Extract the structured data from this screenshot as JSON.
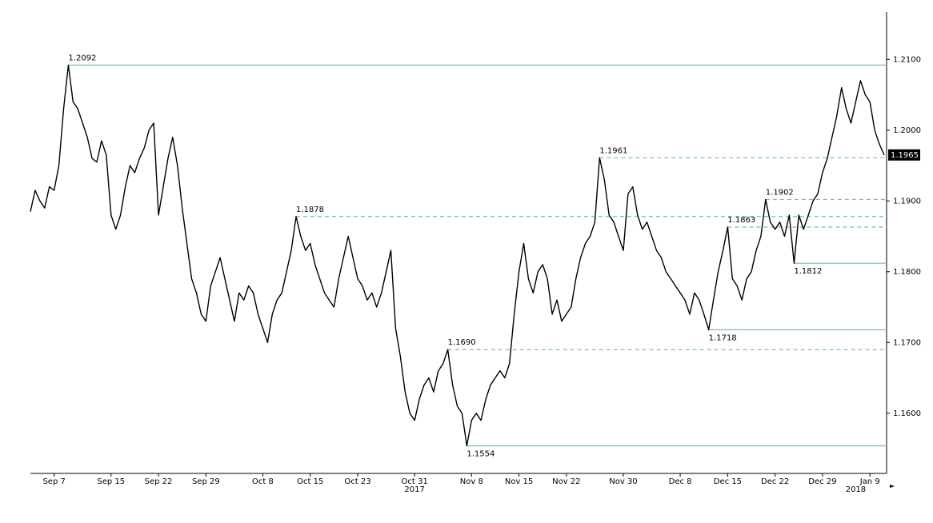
{
  "chart_data": {
    "type": "line",
    "color": "#000000",
    "ylim": [
      1.1515,
      1.2167
    ],
    "yticks": [
      {
        "value": 1.16,
        "label": "1.1600"
      },
      {
        "value": 1.17,
        "label": "1.1700"
      },
      {
        "value": 1.18,
        "label": "1.1800"
      },
      {
        "value": 1.19,
        "label": "1.1900"
      },
      {
        "value": 1.2,
        "label": "1.2000"
      },
      {
        "value": 1.21,
        "label": "1.2100"
      }
    ],
    "categories": [
      null,
      null,
      null,
      null,
      null,
      "Sep 7",
      null,
      null,
      null,
      null,
      null,
      null,
      null,
      null,
      null,
      null,
      null,
      "Sep 15",
      null,
      null,
      null,
      null,
      null,
      null,
      null,
      null,
      null,
      "Sep 22",
      null,
      null,
      null,
      null,
      null,
      null,
      null,
      null,
      null,
      "Sep 29",
      null,
      null,
      null,
      null,
      null,
      null,
      null,
      null,
      null,
      null,
      null,
      "Oct 8",
      null,
      null,
      null,
      null,
      null,
      null,
      null,
      null,
      null,
      "Oct 15",
      null,
      null,
      null,
      null,
      null,
      null,
      null,
      null,
      null,
      "Oct 23",
      null,
      null,
      null,
      null,
      null,
      null,
      null,
      null,
      null,
      null,
      null,
      "Oct 31",
      null,
      null,
      null,
      null,
      null,
      null,
      null,
      null,
      null,
      null,
      null,
      "Nov 8",
      null,
      null,
      null,
      null,
      null,
      null,
      null,
      null,
      null,
      "Nov 15",
      null,
      null,
      null,
      null,
      null,
      null,
      null,
      null,
      null,
      "Nov 22",
      null,
      null,
      null,
      null,
      null,
      null,
      null,
      null,
      null,
      null,
      null,
      "Nov 30",
      null,
      null,
      null,
      null,
      null,
      null,
      null,
      null,
      null,
      null,
      null,
      "Dec 8",
      null,
      null,
      null,
      null,
      null,
      null,
      null,
      null,
      null,
      "Dec 15",
      null,
      null,
      null,
      null,
      null,
      null,
      null,
      null,
      null,
      "Dec 22",
      null,
      null,
      null,
      null,
      null,
      null,
      null,
      null,
      null,
      "Dec 29",
      null,
      null,
      null,
      null,
      null,
      null,
      null,
      null,
      null,
      "Jan 9",
      null,
      null,
      null
    ],
    "year_categories": [
      null,
      null,
      null,
      null,
      null,
      null,
      null,
      null,
      null,
      null,
      null,
      null,
      null,
      null,
      null,
      null,
      null,
      null,
      null,
      null,
      null,
      null,
      null,
      null,
      null,
      null,
      null,
      null,
      null,
      null,
      null,
      null,
      null,
      null,
      null,
      null,
      null,
      null,
      null,
      null,
      null,
      null,
      null,
      null,
      null,
      null,
      null,
      null,
      null,
      null,
      null,
      null,
      null,
      null,
      null,
      null,
      null,
      null,
      null,
      null,
      null,
      null,
      null,
      null,
      null,
      null,
      null,
      null,
      null,
      null,
      null,
      null,
      null,
      null,
      null,
      null,
      null,
      null,
      null,
      null,
      null,
      "2017",
      null,
      null,
      null,
      null,
      null,
      null,
      null,
      null,
      null,
      null,
      null,
      null,
      null,
      null,
      null,
      null,
      null,
      null,
      null,
      null,
      null,
      null,
      null,
      null,
      null,
      null,
      null,
      null,
      null,
      null,
      null,
      null,
      null,
      null,
      null,
      null,
      null,
      null,
      null,
      null,
      null,
      null,
      null,
      null,
      null,
      null,
      null,
      null,
      null,
      null,
      null,
      null,
      null,
      null,
      null,
      null,
      null,
      null,
      null,
      null,
      null,
      null,
      null,
      null,
      null,
      null,
      null,
      null,
      null,
      null,
      null,
      null,
      null,
      null,
      null,
      null,
      null,
      null,
      null,
      null,
      null,
      null,
      null,
      null,
      null,
      null,
      null,
      null,
      null,
      null,
      null,
      null,
      "2018",
      null,
      null,
      null,
      null,
      null,
      null
    ],
    "values": [
      1.1885,
      1.1915,
      1.19,
      1.189,
      1.192,
      1.1915,
      1.195,
      1.203,
      1.2092,
      1.204,
      1.203,
      1.201,
      1.199,
      1.196,
      1.1955,
      1.1985,
      1.1965,
      1.188,
      1.186,
      1.188,
      1.192,
      1.195,
      1.194,
      1.196,
      1.1975,
      1.2,
      1.201,
      1.188,
      1.192,
      1.196,
      1.199,
      1.195,
      1.189,
      1.184,
      1.179,
      1.177,
      1.174,
      1.173,
      1.178,
      1.18,
      1.182,
      1.179,
      1.176,
      1.173,
      1.177,
      1.176,
      1.178,
      1.177,
      1.174,
      1.172,
      1.17,
      1.174,
      1.176,
      1.177,
      1.18,
      1.183,
      1.1878,
      1.185,
      1.183,
      1.184,
      1.181,
      1.179,
      1.177,
      1.176,
      1.175,
      1.179,
      1.182,
      1.185,
      1.182,
      1.179,
      1.178,
      1.176,
      1.177,
      1.175,
      1.177,
      1.18,
      1.183,
      1.172,
      1.168,
      1.163,
      1.16,
      1.159,
      1.162,
      1.164,
      1.165,
      1.163,
      1.166,
      1.167,
      1.169,
      1.164,
      1.161,
      1.16,
      1.1554,
      1.159,
      1.16,
      1.159,
      1.162,
      1.164,
      1.165,
      1.166,
      1.165,
      1.167,
      1.174,
      1.18,
      1.184,
      1.179,
      1.177,
      1.18,
      1.181,
      1.179,
      1.174,
      1.176,
      1.173,
      1.174,
      1.175,
      1.179,
      1.182,
      1.184,
      1.185,
      1.187,
      1.1961,
      1.193,
      1.188,
      1.187,
      1.185,
      1.183,
      1.191,
      1.192,
      1.188,
      1.186,
      1.187,
      1.185,
      1.183,
      1.182,
      1.18,
      1.179,
      1.178,
      1.177,
      1.176,
      1.174,
      1.177,
      1.176,
      1.174,
      1.1718,
      1.176,
      1.18,
      1.183,
      1.1863,
      1.179,
      1.178,
      1.176,
      1.179,
      1.18,
      1.183,
      1.185,
      1.1902,
      1.187,
      1.186,
      1.187,
      1.185,
      1.188,
      1.1812,
      1.188,
      1.186,
      1.188,
      1.19,
      1.191,
      1.194,
      1.196,
      1.199,
      1.202,
      1.206,
      1.203,
      1.201,
      1.204,
      1.207,
      1.205,
      1.204,
      1.2,
      1.198,
      1.1965
    ],
    "annotations": [
      {
        "value": 1.2092,
        "label": "1.2092",
        "style": "solid"
      },
      {
        "value": 1.1878,
        "label": "1.1878",
        "style": "dashed"
      },
      {
        "value": 1.169,
        "label": "1.1690",
        "style": "dashed"
      },
      {
        "value": 1.1554,
        "label": "1.1554",
        "style": "solid"
      },
      {
        "value": 1.1961,
        "label": "1.1961",
        "style": "dashed"
      },
      {
        "value": 1.1718,
        "label": "1.1718",
        "style": "solid"
      },
      {
        "value": 1.1863,
        "label": "1.1863",
        "style": "dashed"
      },
      {
        "value": 1.1902,
        "label": "1.1902",
        "style": "dashed"
      },
      {
        "value": 1.1812,
        "label": "1.1812",
        "style": "solid"
      }
    ],
    "annotation_color": "#6cc3b0",
    "last_price": {
      "value": 1.1965,
      "label": "1.1965"
    }
  }
}
